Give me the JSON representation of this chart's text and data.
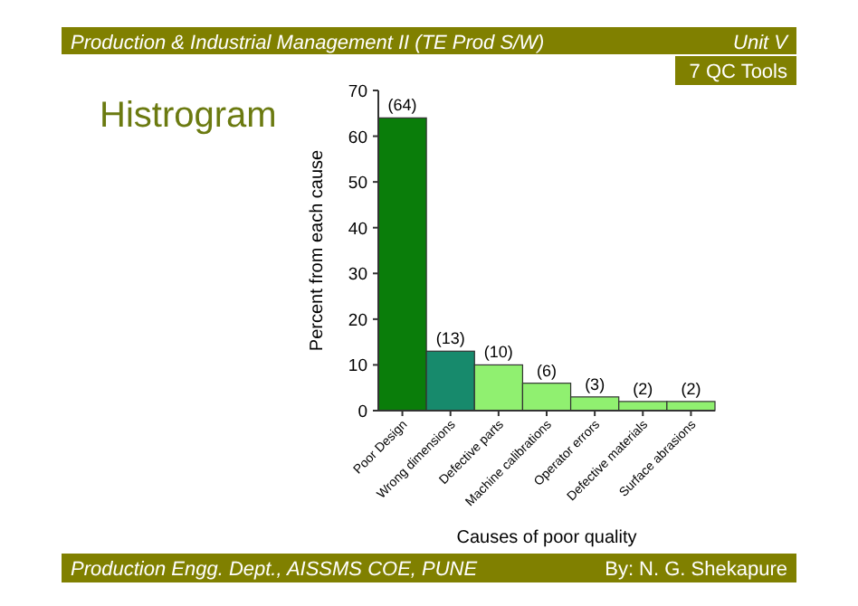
{
  "chart_data": {
    "type": "bar",
    "title": "Histrogram",
    "xlabel": "Causes of poor quality",
    "ylabel": "Percent from each cause",
    "categories": [
      "Poor Design",
      "Wrong dimensions",
      "Defective parts",
      "Machine calibrations",
      "Operator errors",
      "Defective materials",
      "Surface abrasions"
    ],
    "values": [
      64,
      13,
      10,
      6,
      3,
      2,
      2
    ],
    "colors": [
      "#0a7d0a",
      "#178a6c",
      "#90f070",
      "#90f070",
      "#90f070",
      "#90f070",
      "#90f070"
    ],
    "value_labels": [
      "(64)",
      "(13)",
      "(10)",
      "(6)",
      "(3)",
      "(2)",
      "(2)"
    ],
    "ylim": [
      0,
      70
    ],
    "yticks": [
      0,
      10,
      20,
      30,
      40,
      50,
      60,
      70
    ],
    "annotations": [
      "Production & Industrial Management II (TE Prod S/W)",
      "Unit V",
      "7 QC Tools",
      "Production Engg. Dept., AISSMS COE, PUNE",
      "By: N. G. Shekapure"
    ]
  }
}
